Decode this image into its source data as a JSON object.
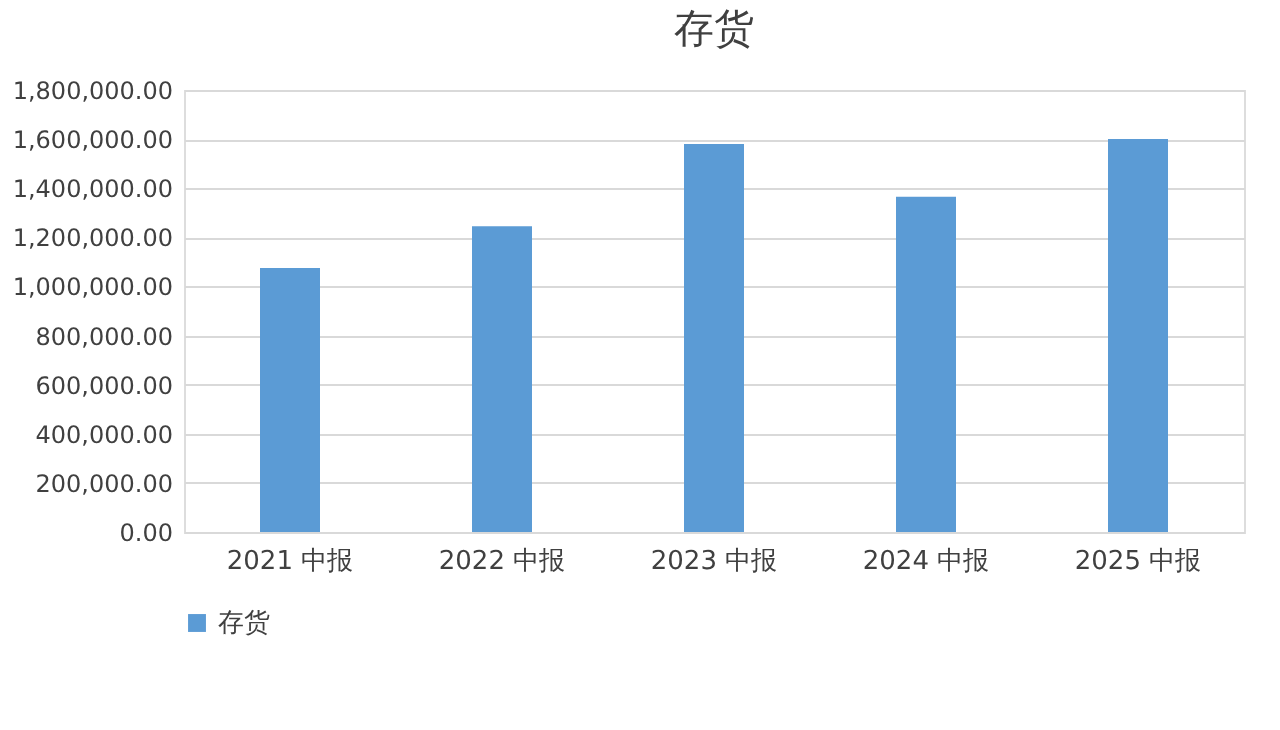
{
  "chart_data": {
    "type": "bar",
    "title": "存货",
    "categories": [
      "2021 中报",
      "2022 中报",
      "2023 中报",
      "2024 中报",
      "2025 中报"
    ],
    "series": [
      {
        "name": "存货",
        "color": "#5b9bd5",
        "values": [
          1075000,
          1245000,
          1580000,
          1365000,
          1600000
        ]
      }
    ],
    "ylim": [
      0,
      1800000
    ],
    "yticks": [
      {
        "value": 0,
        "label": "0.00"
      },
      {
        "value": 200000,
        "label": "200,000.00"
      },
      {
        "value": 400000,
        "label": "400,000.00"
      },
      {
        "value": 600000,
        "label": "600,000.00"
      },
      {
        "value": 800000,
        "label": "800,000.00"
      },
      {
        "value": 1000000,
        "label": "1,000,000.00"
      },
      {
        "value": 1200000,
        "label": "1,200,000.00"
      },
      {
        "value": 1400000,
        "label": "1,400,000.00"
      },
      {
        "value": 1600000,
        "label": "1,600,000.00"
      },
      {
        "value": 1800000,
        "label": "1,800,000.00"
      }
    ],
    "grid": "y",
    "legend": "bottom"
  }
}
